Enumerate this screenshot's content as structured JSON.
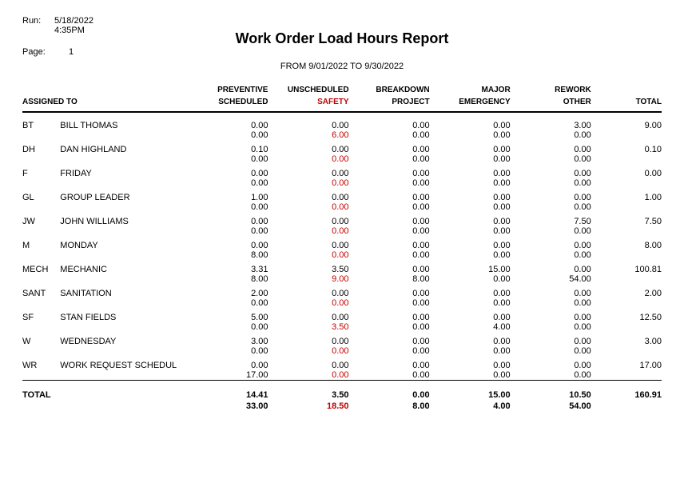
{
  "meta": {
    "run_label": "Run:",
    "run_date": "5/18/2022",
    "run_time": "4:35PM",
    "page_label": "Page:",
    "page_num": "1"
  },
  "header": {
    "title": "Work Order Load Hours Report",
    "subtitle": "FROM  9/01/2022 TO  9/30/2022"
  },
  "columns": {
    "assigned_to": "ASSIGNED TO",
    "c1a": "PREVENTIVE",
    "c1b": "SCHEDULED",
    "c2a": "UNSCHEDULED",
    "c2b": "SAFETY",
    "c3a": "BREAKDOWN",
    "c3b": "PROJECT",
    "c4a": "MAJOR",
    "c4b": "EMERGENCY",
    "c5a": "REWORK",
    "c5b": "OTHER",
    "total": "TOTAL"
  },
  "styles": {
    "safety_color": "#c00000"
  },
  "rows": [
    {
      "code": "BT",
      "name": "BILL THOMAS",
      "r1": [
        "0.00",
        "0.00",
        "0.00",
        "0.00",
        "3.00"
      ],
      "total": "9.00",
      "r2": [
        "0.00",
        "6.00",
        "0.00",
        "0.00",
        "0.00"
      ]
    },
    {
      "code": "DH",
      "name": "DAN HIGHLAND",
      "r1": [
        "0.10",
        "0.00",
        "0.00",
        "0.00",
        "0.00"
      ],
      "total": "0.10",
      "r2": [
        "0.00",
        "0.00",
        "0.00",
        "0.00",
        "0.00"
      ]
    },
    {
      "code": "F",
      "name": "FRIDAY",
      "r1": [
        "0.00",
        "0.00",
        "0.00",
        "0.00",
        "0.00"
      ],
      "total": "0.00",
      "r2": [
        "0.00",
        "0.00",
        "0.00",
        "0.00",
        "0.00"
      ]
    },
    {
      "code": "GL",
      "name": "GROUP LEADER",
      "r1": [
        "1.00",
        "0.00",
        "0.00",
        "0.00",
        "0.00"
      ],
      "total": "1.00",
      "r2": [
        "0.00",
        "0.00",
        "0.00",
        "0.00",
        "0.00"
      ]
    },
    {
      "code": "JW",
      "name": "JOHN WILLIAMS",
      "r1": [
        "0.00",
        "0.00",
        "0.00",
        "0.00",
        "7.50"
      ],
      "total": "7.50",
      "r2": [
        "0.00",
        "0.00",
        "0.00",
        "0.00",
        "0.00"
      ]
    },
    {
      "code": "M",
      "name": "MONDAY",
      "r1": [
        "0.00",
        "0.00",
        "0.00",
        "0.00",
        "0.00"
      ],
      "total": "8.00",
      "r2": [
        "8.00",
        "0.00",
        "0.00",
        "0.00",
        "0.00"
      ]
    },
    {
      "code": "MECH",
      "name": "MECHANIC",
      "r1": [
        "3.31",
        "3.50",
        "0.00",
        "15.00",
        "0.00"
      ],
      "total": "100.81",
      "r2": [
        "8.00",
        "9.00",
        "8.00",
        "0.00",
        "54.00"
      ]
    },
    {
      "code": "SANT",
      "name": "SANITATION",
      "r1": [
        "2.00",
        "0.00",
        "0.00",
        "0.00",
        "0.00"
      ],
      "total": "2.00",
      "r2": [
        "0.00",
        "0.00",
        "0.00",
        "0.00",
        "0.00"
      ]
    },
    {
      "code": "SF",
      "name": "STAN FIELDS",
      "r1": [
        "5.00",
        "0.00",
        "0.00",
        "0.00",
        "0.00"
      ],
      "total": "12.50",
      "r2": [
        "0.00",
        "3.50",
        "0.00",
        "4.00",
        "0.00"
      ]
    },
    {
      "code": "W",
      "name": "WEDNESDAY",
      "r1": [
        "3.00",
        "0.00",
        "0.00",
        "0.00",
        "0.00"
      ],
      "total": "3.00",
      "r2": [
        "0.00",
        "0.00",
        "0.00",
        "0.00",
        "0.00"
      ]
    },
    {
      "code": "WR",
      "name": "WORK REQUEST SCHEDUL",
      "r1": [
        "0.00",
        "0.00",
        "0.00",
        "0.00",
        "0.00"
      ],
      "total": "17.00",
      "r2": [
        "17.00",
        "0.00",
        "0.00",
        "0.00",
        "0.00"
      ]
    }
  ],
  "totals": {
    "label": "TOTAL",
    "r1": [
      "14.41",
      "3.50",
      "0.00",
      "15.00",
      "10.50"
    ],
    "total": "160.91",
    "r2": [
      "33.00",
      "18.50",
      "8.00",
      "4.00",
      "54.00"
    ]
  }
}
